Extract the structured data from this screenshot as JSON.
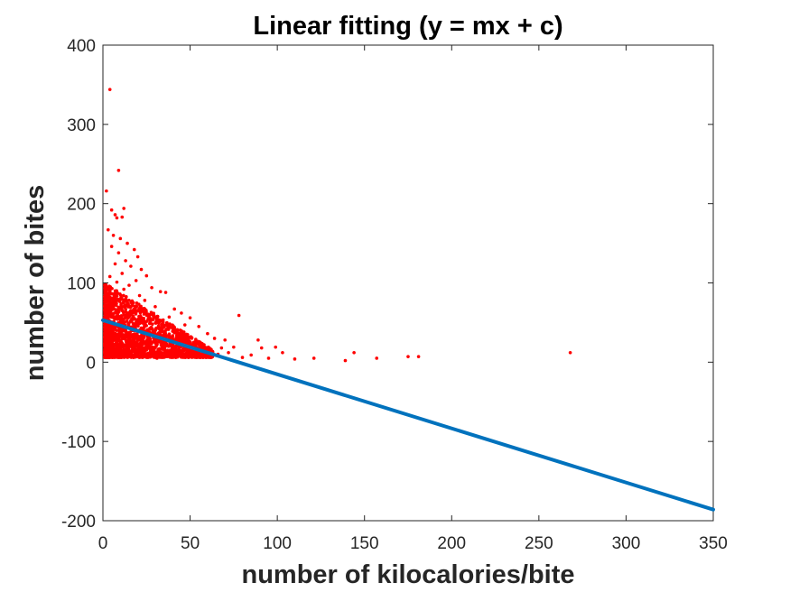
{
  "chart_data": {
    "type": "scatter",
    "title": "Linear fitting (y = mx + c)",
    "xlabel": "number of kilocalories/bite",
    "ylabel": "number of bites",
    "xlim": [
      0,
      350
    ],
    "ylim": [
      -200,
      400
    ],
    "xticks": [
      0,
      50,
      100,
      150,
      200,
      250,
      300,
      350
    ],
    "yticks": [
      -200,
      -100,
      0,
      100,
      200,
      300,
      400
    ],
    "xtick_labels": [
      "0",
      "50",
      "100",
      "150",
      "200",
      "250",
      "300",
      "350"
    ],
    "ytick_labels": [
      "-200",
      "-100",
      "0",
      "100",
      "200",
      "300",
      "400"
    ],
    "grid": false,
    "series": [
      {
        "kind": "scatter",
        "color": "#ff0000",
        "points": [
          [
            4,
            344
          ],
          [
            9,
            242
          ],
          [
            2,
            216
          ],
          [
            5,
            192
          ],
          [
            7,
            186
          ],
          [
            12,
            194
          ],
          [
            8,
            182
          ],
          [
            11,
            183
          ],
          [
            3,
            167
          ],
          [
            6,
            160
          ],
          [
            10,
            156
          ],
          [
            14,
            150
          ],
          [
            5,
            146
          ],
          [
            18,
            142
          ],
          [
            9,
            138
          ],
          [
            20,
            133
          ],
          [
            13,
            128
          ],
          [
            7,
            124
          ],
          [
            16,
            121
          ],
          [
            22,
            117
          ],
          [
            11,
            112
          ],
          [
            4,
            108
          ],
          [
            25,
            109
          ],
          [
            19,
            103
          ],
          [
            8,
            101
          ],
          [
            15,
            97
          ],
          [
            28,
            94
          ],
          [
            33,
            89
          ],
          [
            12,
            92
          ],
          [
            6,
            86
          ],
          [
            21,
            84
          ],
          [
            36,
            88
          ],
          [
            10,
            80
          ],
          [
            24,
            78
          ],
          [
            17,
            74
          ],
          [
            30,
            70
          ],
          [
            41,
            67
          ],
          [
            3,
            72
          ],
          [
            45,
            62
          ],
          [
            13,
            64
          ],
          [
            27,
            60
          ],
          [
            38,
            57
          ],
          [
            50,
            56
          ],
          [
            9,
            55
          ],
          [
            20,
            51
          ],
          [
            32,
            49
          ],
          [
            47,
            47
          ],
          [
            55,
            45
          ],
          [
            5,
            48
          ],
          [
            14,
            44
          ],
          [
            26,
            41
          ],
          [
            40,
            39
          ],
          [
            60,
            36
          ],
          [
            64,
            30
          ],
          [
            70,
            28
          ],
          [
            75,
            19
          ],
          [
            7,
            36
          ],
          [
            18,
            33
          ],
          [
            29,
            31
          ],
          [
            43,
            29
          ],
          [
            53,
            26
          ],
          [
            58,
            22
          ],
          [
            68,
            18
          ],
          [
            72,
            12
          ],
          [
            2,
            28
          ],
          [
            11,
            24
          ],
          [
            22,
            21
          ],
          [
            34,
            18
          ],
          [
            46,
            15
          ],
          [
            57,
            11
          ],
          [
            63,
            8
          ],
          [
            80,
            6
          ],
          [
            6,
            14
          ],
          [
            15,
            11
          ],
          [
            24,
            9
          ],
          [
            37,
            7
          ],
          [
            49,
            6
          ],
          [
            66,
            10
          ],
          [
            4,
            7
          ],
          [
            31,
            5
          ],
          [
            78,
            59
          ],
          [
            85,
            9
          ],
          [
            89,
            28
          ],
          [
            91,
            18
          ],
          [
            95,
            5
          ],
          [
            99,
            19
          ],
          [
            103,
            12
          ],
          [
            110,
            4
          ],
          [
            121,
            5
          ],
          [
            139,
            2
          ],
          [
            144,
            12
          ],
          [
            157,
            5
          ],
          [
            175,
            7
          ],
          [
            181,
            7
          ],
          [
            268,
            12
          ]
        ]
      },
      {
        "kind": "line",
        "label": "",
        "color": "#0072bd",
        "x": [
          0,
          350
        ],
        "y": [
          53,
          -186
        ]
      }
    ]
  }
}
